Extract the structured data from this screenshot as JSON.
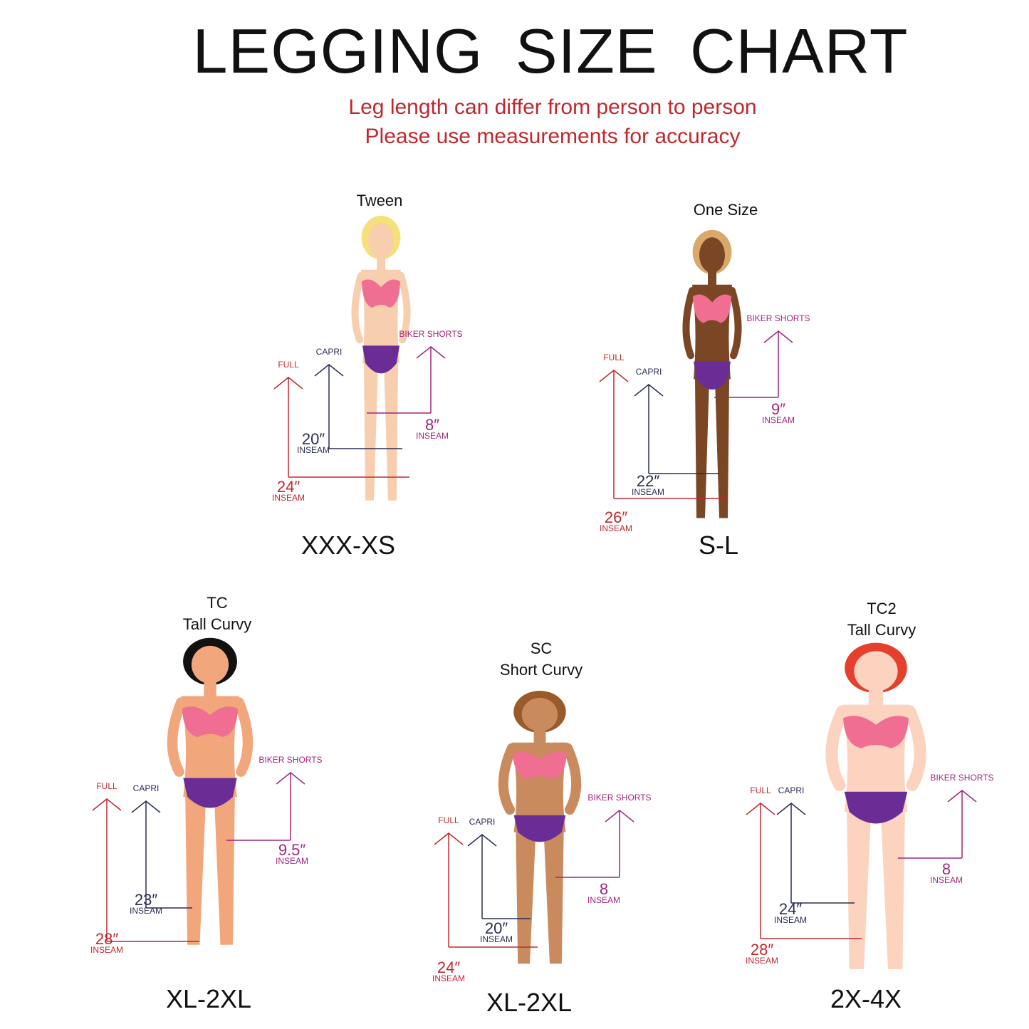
{
  "title": "LEGGING  SIZE CHART",
  "subtitle_lines": [
    "Leg length can differ from person to person",
    "Please use measurements for accuracy"
  ],
  "colors": {
    "title": "#111111",
    "subtitle": "#c0282e",
    "full": "#c0282e",
    "capri": "#2b2d55",
    "biker": "#a0267e",
    "bra": "#f06e92",
    "bottoms": "#6a2d96"
  },
  "measure_labels": {
    "full": "FULL",
    "capri": "CAPRI",
    "biker": "BIKER SHORTS",
    "inseam": "INSEAM"
  },
  "panels": [
    {
      "label_lines": [
        "Tween"
      ],
      "size": "XXX-XS",
      "full": "24″",
      "capri": "20″",
      "biker": "8″",
      "skin": "#f8cfae",
      "hair": "#f7df7a"
    },
    {
      "label_lines": [
        "One Size"
      ],
      "size": "S-L",
      "full": "26″",
      "capri": "22″",
      "biker": "9″",
      "skin": "#7a4623",
      "hair": "#d9a86a"
    },
    {
      "label_lines": [
        "TC",
        "Tall Curvy"
      ],
      "size": "XL-2XL",
      "full": "28″",
      "capri": "23″",
      "biker": "9.5″",
      "skin": "#f2a67b",
      "hair": "#111111"
    },
    {
      "label_lines": [
        "SC",
        "Short Curvy"
      ],
      "size": "XL-2XL",
      "full": "24″",
      "capri": "20″",
      "biker": "8",
      "skin": "#c98a5e",
      "hair": "#9a5a2a"
    },
    {
      "label_lines": [
        "TC2",
        "Tall Curvy"
      ],
      "size": "2X-4X",
      "full": "28″",
      "capri": "24″",
      "biker": "8",
      "skin": "#fbd3bf",
      "hair": "#e5402e"
    }
  ]
}
